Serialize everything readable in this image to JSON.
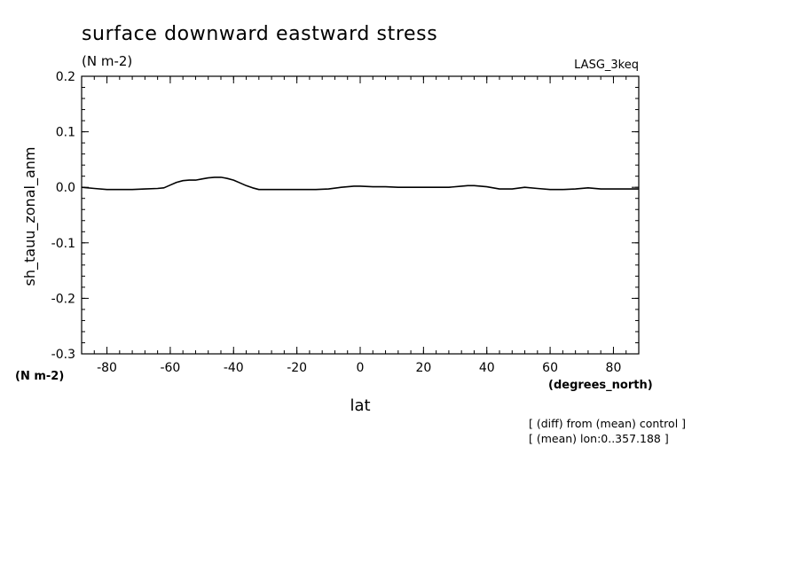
{
  "chart_data": {
    "type": "line",
    "title": "surface downward eastward stress",
    "subtitle": "(N m-2)",
    "experiment_label": "LASG_3keq",
    "ylabel": "sh_tauu_zonal_anm",
    "y_units": "(N m-2)",
    "xlabel": "lat",
    "x_units": "(degrees_north)",
    "notes": [
      "[ (diff) from (mean) control ]",
      "[ (mean) lon:0..357.188 ]"
    ],
    "xlim": [
      -88,
      88
    ],
    "ylim": [
      -0.3,
      0.2
    ],
    "x_ticks": [
      -80,
      -60,
      -40,
      -20,
      0,
      20,
      40,
      60,
      80
    ],
    "x_tick_labels": [
      "-80",
      "-60",
      "-40",
      "-20",
      "0",
      "20",
      "40",
      "60",
      "80"
    ],
    "y_ticks": [
      -0.3,
      -0.2,
      -0.1,
      0.0,
      0.1,
      0.2
    ],
    "y_tick_labels": [
      "-0.3",
      "-0.2",
      "-0.1",
      "0.0",
      "0.1",
      "0.2"
    ],
    "grid": false,
    "line_color": "#000000",
    "series": [
      {
        "x": [
          -88,
          -84,
          -80,
          -76,
          -72,
          -68,
          -64,
          -62,
          -60,
          -58,
          -56,
          -54,
          -52,
          -50,
          -48,
          -46,
          -44,
          -42,
          -40,
          -38,
          -36,
          -34,
          -32,
          -30,
          -26,
          -22,
          -18,
          -14,
          -10,
          -6,
          -2,
          0,
          4,
          8,
          12,
          16,
          20,
          24,
          28,
          32,
          34,
          36,
          40,
          44,
          48,
          52,
          56,
          60,
          64,
          68,
          72,
          76,
          80,
          84,
          88
        ],
        "y": [
          0.0,
          -0.002,
          -0.004,
          -0.004,
          -0.004,
          -0.003,
          -0.002,
          -0.001,
          0.004,
          0.009,
          0.012,
          0.013,
          0.013,
          0.015,
          0.017,
          0.018,
          0.018,
          0.016,
          0.013,
          0.008,
          0.003,
          -0.001,
          -0.004,
          -0.004,
          -0.004,
          -0.004,
          -0.004,
          -0.004,
          -0.003,
          0.0,
          0.002,
          0.002,
          0.001,
          0.001,
          0.0,
          0.0,
          0.0,
          0.0,
          0.0,
          0.002,
          0.003,
          0.003,
          0.001,
          -0.003,
          -0.003,
          0.0,
          -0.002,
          -0.004,
          -0.004,
          -0.003,
          -0.001,
          -0.003,
          -0.003,
          -0.003,
          -0.003
        ]
      }
    ]
  }
}
